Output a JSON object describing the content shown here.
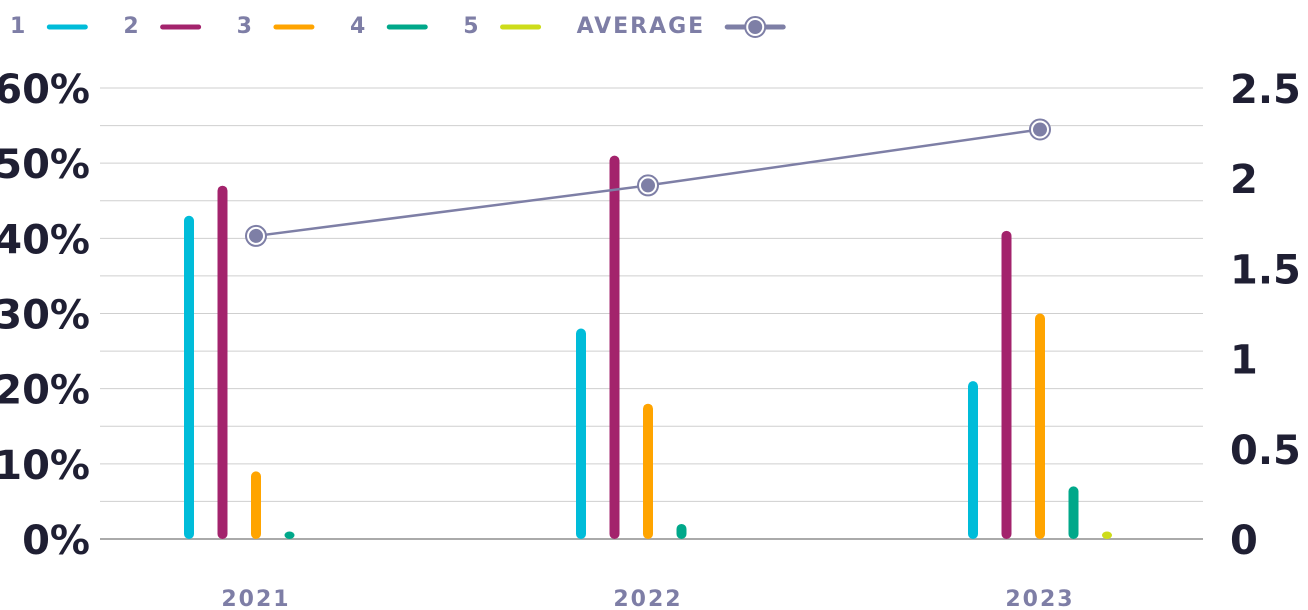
{
  "chart_data": {
    "type": "bar",
    "categories": [
      "2021",
      "2022",
      "2023"
    ],
    "series": [
      {
        "name": "1",
        "color": "#00bcd9",
        "values": [
          43,
          28,
          21
        ]
      },
      {
        "name": "2",
        "color": "#a3236c",
        "values": [
          47,
          51,
          41
        ]
      },
      {
        "name": "3",
        "color": "#ffa400",
        "values": [
          9,
          18,
          30
        ]
      },
      {
        "name": "4",
        "color": "#00a88a",
        "values": [
          1,
          2,
          7
        ]
      },
      {
        "name": "5",
        "color": "#cddc1a",
        "values": [
          0,
          0,
          1
        ]
      },
      {
        "name": "AVERAGE",
        "type": "line",
        "axis": "y2",
        "color": "#7e7fa6",
        "values": [
          1.68,
          1.96,
          2.27
        ]
      }
    ],
    "ylim": [
      0,
      60
    ],
    "yticks": [
      {
        "value": 0,
        "label": "0%"
      },
      {
        "value": 10,
        "label": "10%"
      },
      {
        "value": 20,
        "label": "20%"
      },
      {
        "value": 30,
        "label": "30%"
      },
      {
        "value": 40,
        "label": "40%"
      },
      {
        "value": 50,
        "label": "50%"
      },
      {
        "value": 60,
        "label": "60%"
      }
    ],
    "y_minor_ticks": [
      5,
      15,
      25,
      35,
      45,
      55
    ],
    "y2lim": [
      0,
      2.5
    ],
    "y2ticks": [
      0,
      0.5,
      1,
      1.5,
      2,
      2.5
    ],
    "grid": true,
    "legend": "top-left"
  }
}
